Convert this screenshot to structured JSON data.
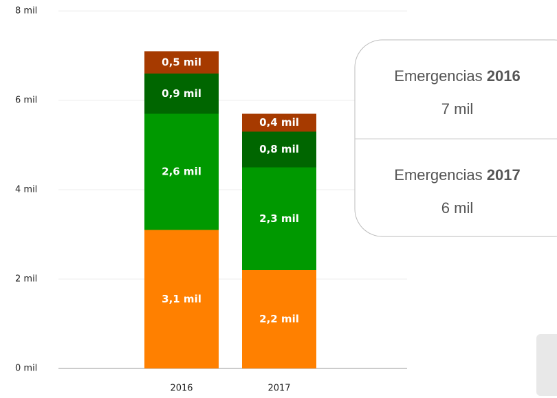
{
  "chart_data": {
    "type": "stacked_bar",
    "categories": [
      "2016",
      "2017"
    ],
    "series": [
      {
        "color": "#ff8000",
        "values": [
          3.1,
          2.2
        ],
        "value_labels": [
          "3,1 mil",
          "2,2 mil"
        ]
      },
      {
        "color": "#009900",
        "values": [
          2.6,
          2.3
        ],
        "value_labels": [
          "2,6 mil",
          "2,3 mil"
        ]
      },
      {
        "color": "#006600",
        "values": [
          0.9,
          0.8
        ],
        "value_labels": [
          "0,9 mil",
          "0,8 mil"
        ]
      },
      {
        "color": "#a63a00",
        "values": [
          0.5,
          0.4
        ],
        "value_labels": [
          "0,5 mil",
          "0,4 mil"
        ]
      }
    ],
    "ylim": [
      0,
      8
    ],
    "yticks": [
      {
        "value": 0,
        "label": "0 mil"
      },
      {
        "value": 2,
        "label": "2 mil"
      },
      {
        "value": 4,
        "label": "4 mil"
      },
      {
        "value": 6,
        "label": "6 mil"
      },
      {
        "value": 8,
        "label": "8 mil"
      }
    ],
    "grid": true,
    "tooltip": [
      {
        "label": "Emergencias",
        "year": "2016",
        "total": "7 mil"
      },
      {
        "label": "Emergencias",
        "year": "2017",
        "total": "6 mil"
      }
    ]
  }
}
